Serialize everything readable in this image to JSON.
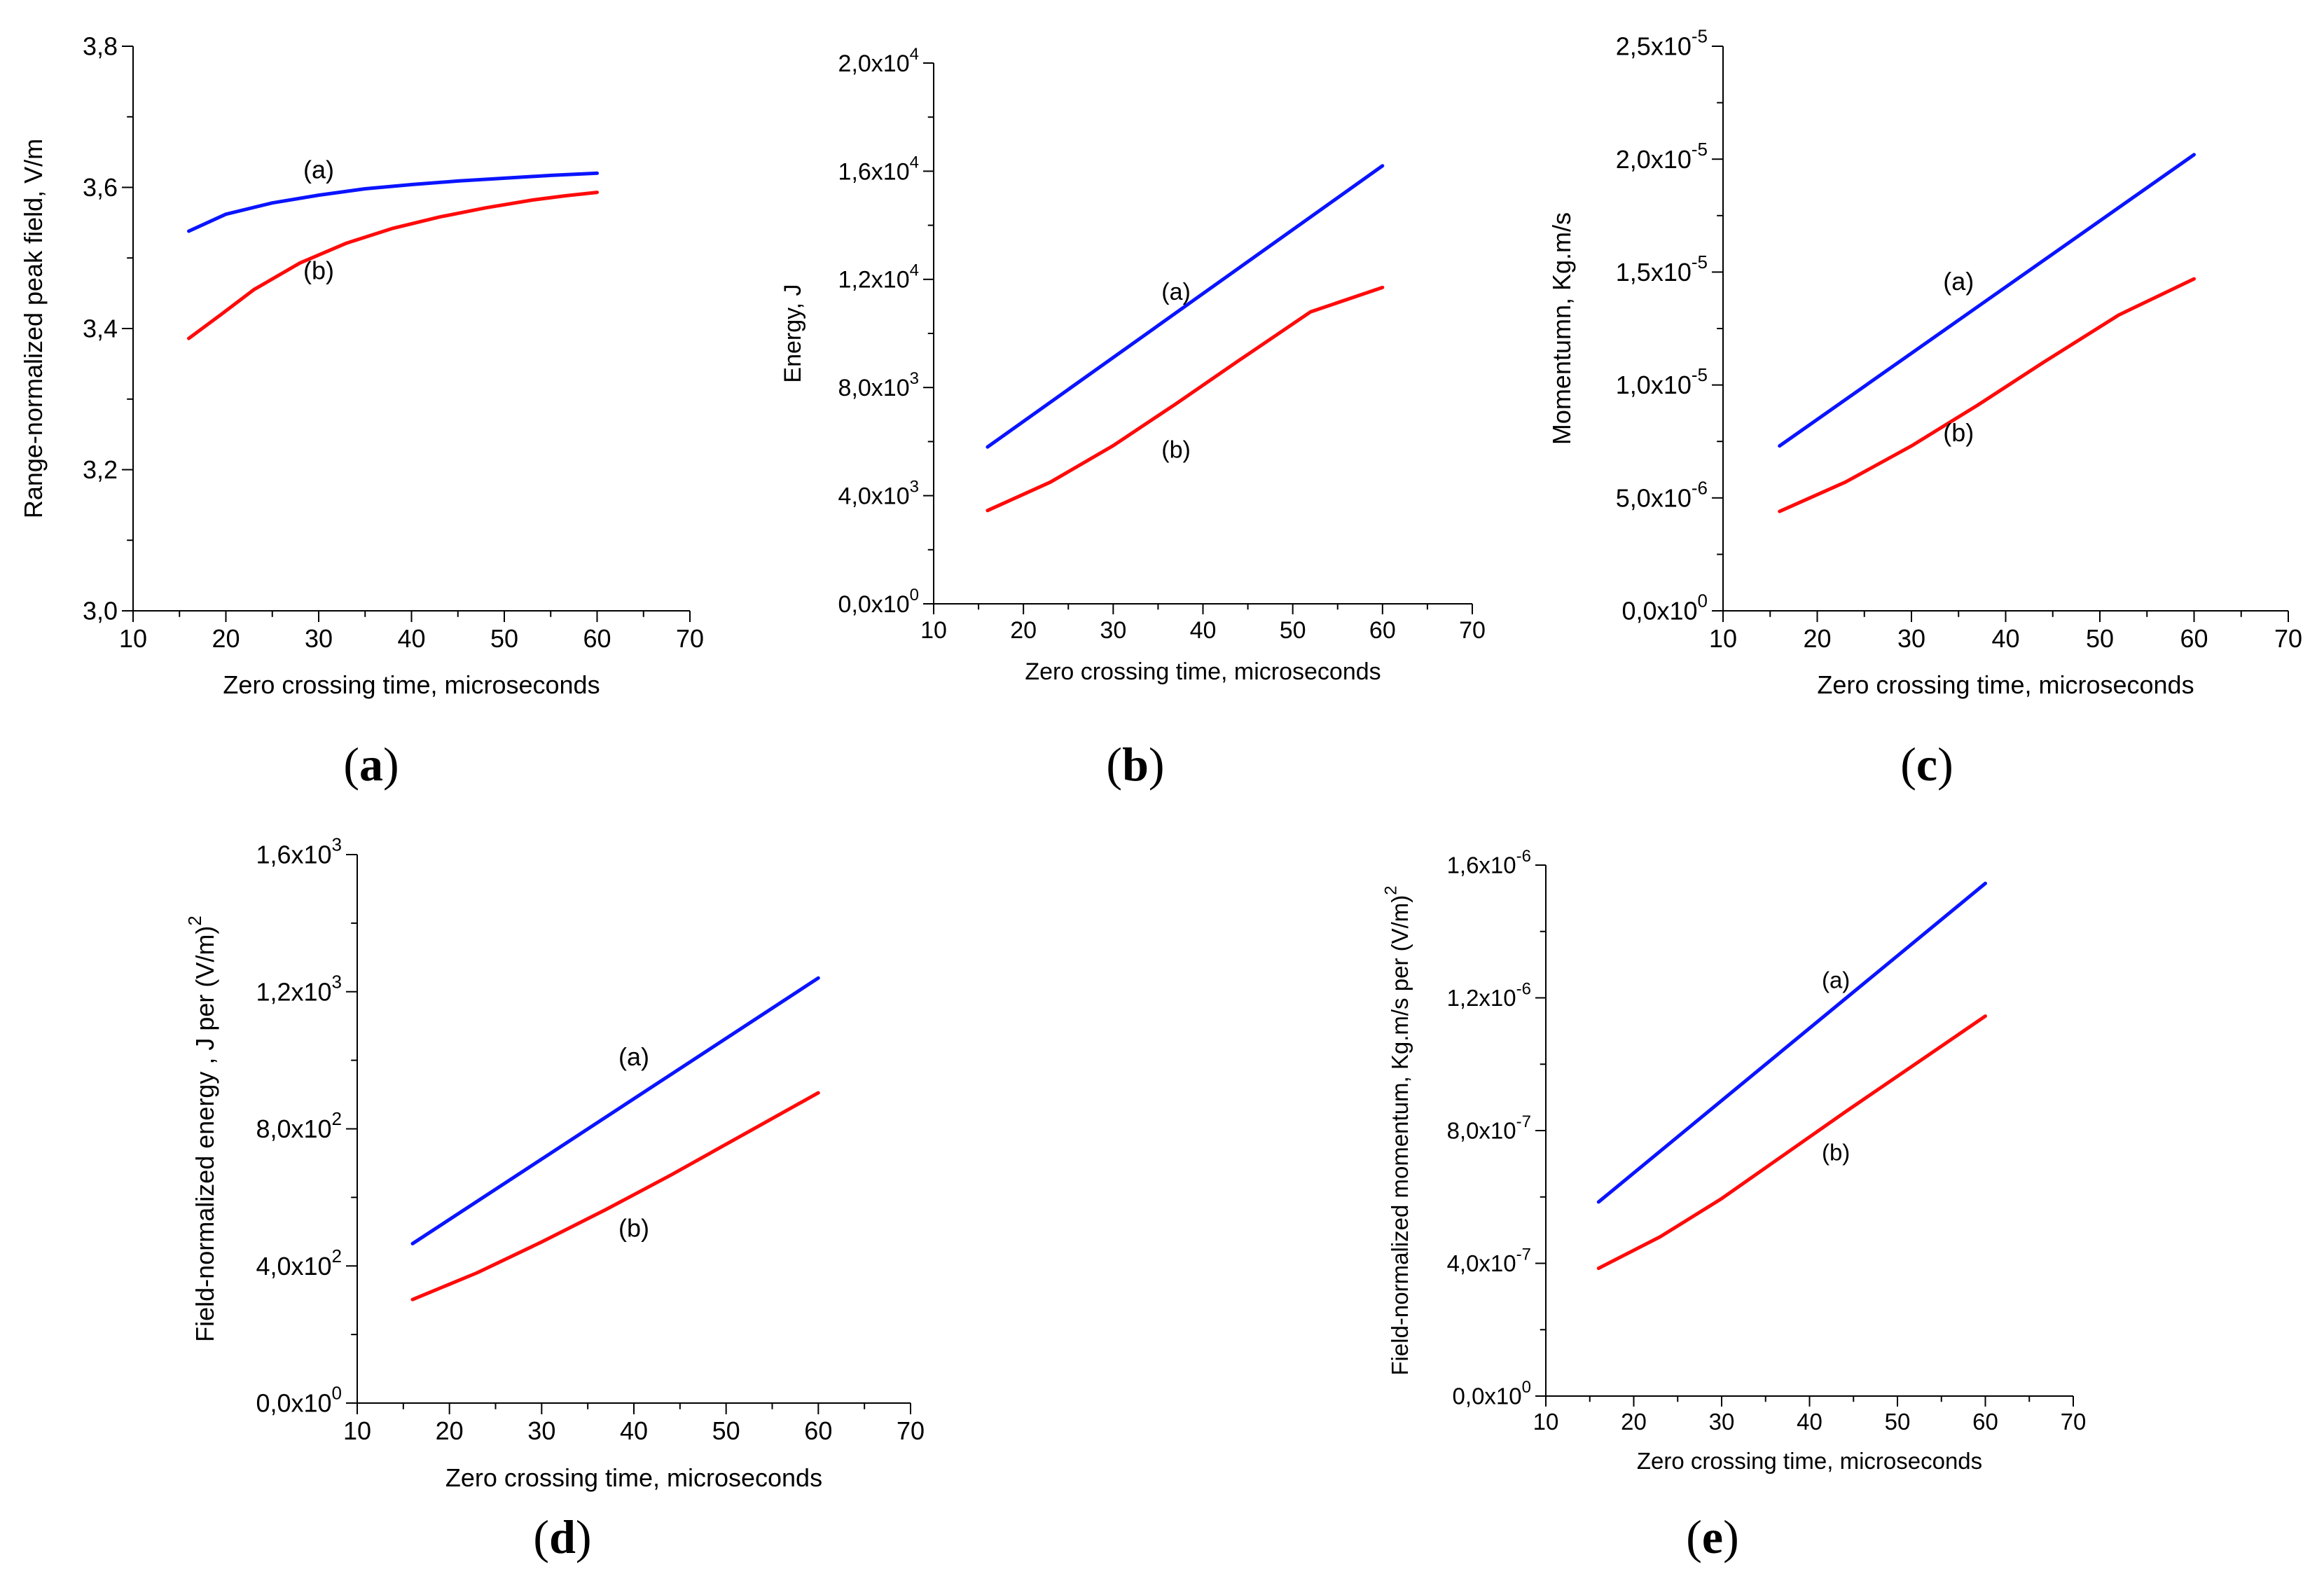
{
  "figure": {
    "colors": {
      "series_a": "#0a14ff",
      "series_b": "#ff0a0a",
      "axis": "#000000"
    },
    "panel_labels": [
      "a",
      "b",
      "c",
      "d",
      "e"
    ]
  },
  "chart_data": [
    {
      "type": "line",
      "panel": "a",
      "title": "",
      "xlabel": "Zero crossing time, microseconds",
      "ylabel": "Range-normalized peak field, V/m",
      "xlim": [
        10,
        70
      ],
      "ylim": [
        3.0,
        3.8
      ],
      "xticks": [
        "10",
        "20",
        "30",
        "40",
        "50",
        "60",
        "70"
      ],
      "yticks": [
        {
          "v": 3.0,
          "m": "3,0"
        },
        {
          "v": 3.2,
          "m": "3,2"
        },
        {
          "v": 3.4,
          "m": "3,4"
        },
        {
          "v": 3.6,
          "m": "3,6"
        },
        {
          "v": 3.8,
          "m": "3,8"
        }
      ],
      "series": [
        {
          "name": "(a)",
          "x": [
            16,
            20,
            25,
            30,
            35,
            40,
            45,
            50,
            55,
            60
          ],
          "y": [
            3.538,
            3.562,
            3.578,
            3.589,
            3.598,
            3.604,
            3.609,
            3.613,
            3.617,
            3.62
          ],
          "label_at": [
            30,
            3.613
          ]
        },
        {
          "name": "(b)",
          "x": [
            16,
            19.5,
            23,
            28,
            33,
            38,
            43,
            48,
            53,
            56.5,
            60
          ],
          "y": [
            3.386,
            3.42,
            3.455,
            3.493,
            3.521,
            3.542,
            3.558,
            3.571,
            3.582,
            3.588,
            3.593
          ],
          "label_at": [
            30,
            3.47
          ]
        }
      ]
    },
    {
      "type": "line",
      "panel": "b",
      "title": "",
      "xlabel": "Zero crossing time, microseconds",
      "ylabel": "Energy, J",
      "xlim": [
        10,
        70
      ],
      "ylim": [
        0,
        20000
      ],
      "xticks": [
        "10",
        "20",
        "30",
        "40",
        "50",
        "60",
        "70"
      ],
      "yticks": [
        {
          "v": 0,
          "m": "0,0x10",
          "e": "0"
        },
        {
          "v": 4000,
          "m": "4,0x10",
          "e": "3"
        },
        {
          "v": 8000,
          "m": "8,0x10",
          "e": "3"
        },
        {
          "v": 12000,
          "m": "1,2x10",
          "e": "4"
        },
        {
          "v": 16000,
          "m": "1,6x10",
          "e": "4"
        },
        {
          "v": 20000,
          "m": "2,0x10",
          "e": "4"
        }
      ],
      "series": [
        {
          "name": "(a)",
          "x": [
            16,
            60
          ],
          "y": [
            5800,
            16200
          ],
          "label_at": [
            37,
            11250
          ]
        },
        {
          "name": "(b)",
          "x": [
            16,
            23,
            30,
            37,
            44,
            52,
            60
          ],
          "y": [
            3450,
            4500,
            5850,
            7400,
            9000,
            10800,
            11700
          ],
          "label_at": [
            37,
            5400
          ]
        }
      ]
    },
    {
      "type": "line",
      "panel": "c",
      "title": "",
      "xlabel": "Zero crossing time, microseconds",
      "ylabel": "Momentumn, Kg.m/s",
      "xlim": [
        10,
        70
      ],
      "ylim": [
        0,
        2.5e-05
      ],
      "xticks": [
        "10",
        "20",
        "30",
        "40",
        "50",
        "60",
        "70"
      ],
      "yticks": [
        {
          "v": 0,
          "m": "0,0x10",
          "e": "0"
        },
        {
          "v": 5e-06,
          "m": "5,0x10",
          "e": "-6"
        },
        {
          "v": 1e-05,
          "m": "1,0x10",
          "e": "-5"
        },
        {
          "v": 1.5e-05,
          "m": "1,5x10",
          "e": "-5"
        },
        {
          "v": 2e-05,
          "m": "2,0x10",
          "e": "-5"
        },
        {
          "v": 2.5e-05,
          "m": "2,5x10",
          "e": "-5"
        }
      ],
      "series": [
        {
          "name": "(a)",
          "x": [
            16,
            60
          ],
          "y": [
            7.3e-06,
            2.02e-05
          ],
          "label_at": [
            35,
            1.42e-05
          ]
        },
        {
          "name": "(b)",
          "x": [
            16,
            23,
            30,
            37,
            44,
            52,
            60
          ],
          "y": [
            4.4e-06,
            5.7e-06,
            7.3e-06,
            9.1e-06,
            1.1e-05,
            1.31e-05,
            1.47e-05
          ],
          "label_at": [
            35,
            7.5e-06
          ]
        }
      ]
    },
    {
      "type": "line",
      "panel": "d",
      "title": "",
      "xlabel": "Zero crossing time, microseconds",
      "ylabel": "Field-normalized energy , J per (V/m)",
      "ylabel_sup": "2",
      "xlim": [
        10,
        70
      ],
      "ylim": [
        0,
        1600
      ],
      "xticks": [
        "10",
        "20",
        "30",
        "40",
        "50",
        "60",
        "70"
      ],
      "yticks": [
        {
          "v": 0,
          "m": "0,0x10",
          "e": "0"
        },
        {
          "v": 400,
          "m": "4,0x10",
          "e": "2"
        },
        {
          "v": 800,
          "m": "8,0x10",
          "e": "2"
        },
        {
          "v": 1200,
          "m": "1,2x10",
          "e": "3"
        },
        {
          "v": 1600,
          "m": "1,6x10",
          "e": "3"
        }
      ],
      "series": [
        {
          "name": "(a)",
          "x": [
            16,
            60
          ],
          "y": [
            465,
            1240
          ],
          "label_at": [
            40,
            985
          ]
        },
        {
          "name": "(b)",
          "x": [
            16,
            23,
            30,
            37,
            44,
            52,
            60
          ],
          "y": [
            302,
            380,
            470,
            565,
            665,
            785,
            905
          ],
          "label_at": [
            40,
            485
          ]
        }
      ]
    },
    {
      "type": "line",
      "panel": "e",
      "title": "",
      "xlabel": "Zero crossing time, microseconds",
      "ylabel": "Field-normalized momentum, Kg.m/s per (V/m)",
      "ylabel_sup": "2",
      "xlim": [
        10,
        70
      ],
      "ylim": [
        0,
        1.6e-06
      ],
      "xticks": [
        "10",
        "20",
        "30",
        "40",
        "50",
        "60",
        "70"
      ],
      "yticks": [
        {
          "v": 0,
          "m": "0,0x10",
          "e": "0"
        },
        {
          "v": 4e-07,
          "m": "4,0x10",
          "e": "-7"
        },
        {
          "v": 8e-07,
          "m": "8,0x10",
          "e": "-7"
        },
        {
          "v": 1.2e-06,
          "m": "1,2x10",
          "e": "-6"
        },
        {
          "v": 1.6e-06,
          "m": "1,6x10",
          "e": "-6"
        }
      ],
      "series": [
        {
          "name": "(a)",
          "x": [
            16,
            60
          ],
          "y": [
            5.85e-07,
            1.545e-06
          ],
          "label_at": [
            43,
            1.23e-06
          ]
        },
        {
          "name": "(b)",
          "x": [
            16,
            23,
            30,
            37,
            44,
            52,
            60
          ],
          "y": [
            3.85e-07,
            4.8e-07,
            5.95e-07,
            7.25e-07,
            8.55e-07,
            1e-06,
            1.145e-06
          ],
          "label_at": [
            43,
            7.1e-07
          ]
        }
      ]
    }
  ]
}
